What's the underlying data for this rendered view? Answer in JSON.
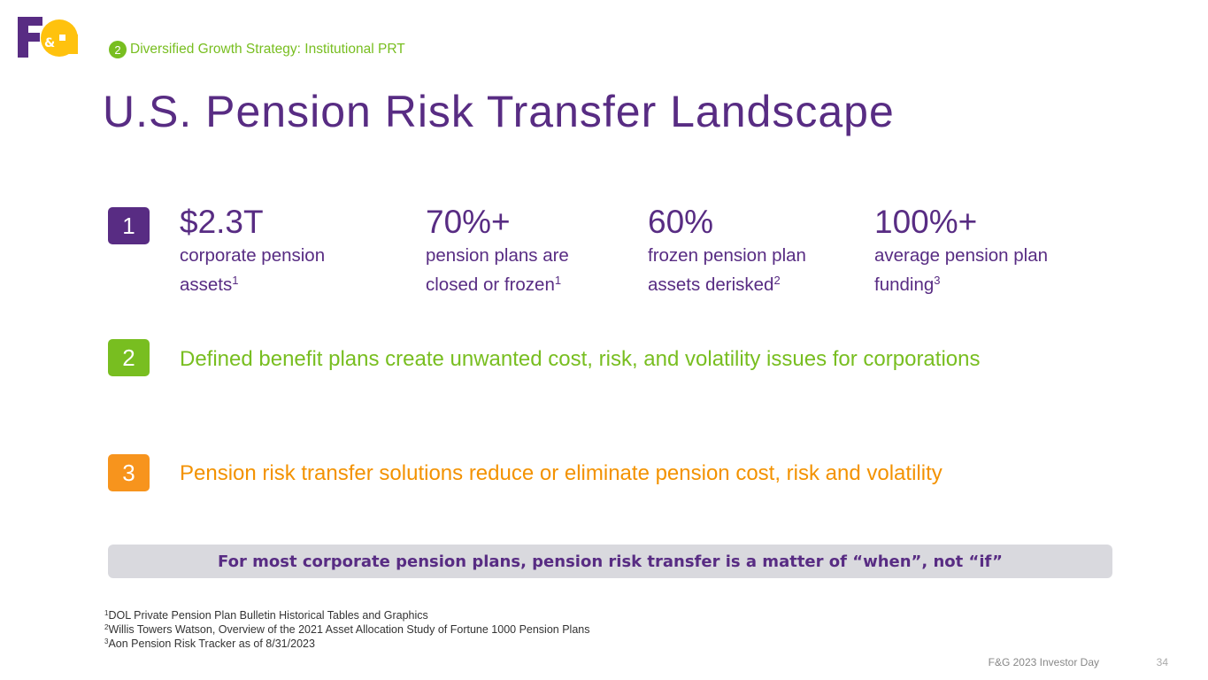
{
  "header": {
    "section_number": "2",
    "section_title": "Diversified Growth Strategy:  Institutional PRT"
  },
  "title": "U.S. Pension Risk Transfer Landscape",
  "points": [
    {
      "number": "1",
      "stats": [
        {
          "value": "$2.3T",
          "lines": [
            "corporate pension",
            "assets"
          ],
          "note": "1"
        },
        {
          "value": "70%+",
          "lines": [
            "pension plans are",
            "closed or frozen"
          ],
          "note": "1"
        },
        {
          "value": "60%",
          "lines": [
            "frozen pension plan",
            "assets derisked"
          ],
          "note": "2"
        },
        {
          "value": "100%+",
          "lines": [
            "average pension plan",
            "funding"
          ],
          "note": "3"
        }
      ]
    },
    {
      "number": "2",
      "text": "Defined benefit plans create unwanted cost, risk, and volatility issues for corporations"
    },
    {
      "number": "3",
      "text": "Pension risk transfer solutions reduce or eliminate pension cost, risk and volatility"
    }
  ],
  "banner": "For most corporate pension plans, pension risk transfer is a matter of “when”, not “if”",
  "footnotes": [
    {
      "marker": "1",
      "text": "DOL Private Pension Plan Bulletin Historical Tables and Graphics"
    },
    {
      "marker": "2",
      "text": "Willis Towers Watson, Overview of the 2021 Asset Allocation Study of Fortune 1000 Pension Plans"
    },
    {
      "marker": "3",
      "text": "Aon Pension Risk Tracker as of 8/31/2023"
    }
  ],
  "footer": {
    "event": "F&G 2023 Investor Day",
    "page": "34"
  }
}
